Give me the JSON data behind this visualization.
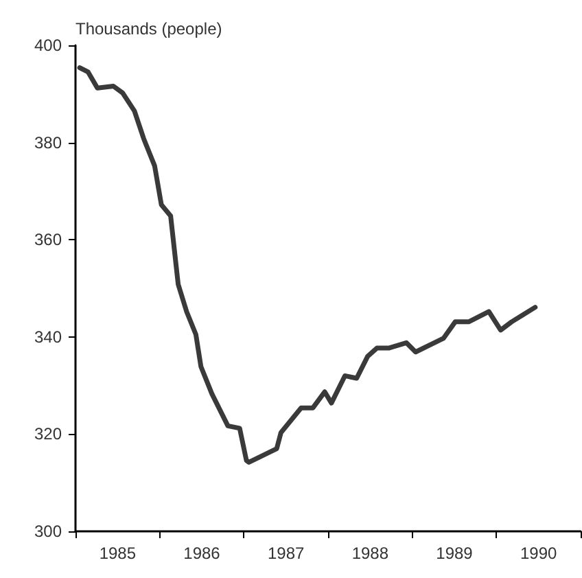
{
  "chart_data": {
    "type": "line",
    "ylabel": "Thousands (people)",
    "x": [
      1985.05,
      1985.15,
      1985.26,
      1985.45,
      1985.56,
      1985.7,
      1985.81,
      1985.94,
      1986.02,
      1986.13,
      1986.22,
      1986.32,
      1986.43,
      1986.49,
      1986.62,
      1986.81,
      1986.95,
      1987.03,
      1987.06,
      1987.39,
      1987.44,
      1987.68,
      1987.82,
      1987.96,
      1988.04,
      1988.2,
      1988.34,
      1988.47,
      1988.58,
      1988.72,
      1988.93,
      1989.04,
      1989.37,
      1989.51,
      1989.67,
      1989.91,
      1990.05,
      1990.18,
      1990.46
    ],
    "series": [
      {
        "color": "#3a3a3a",
        "values": [
          395.4,
          394.5,
          391.2,
          391.6,
          390.2,
          386.5,
          380.8,
          375.2,
          367.2,
          364.9,
          350.8,
          345.2,
          340.5,
          333.9,
          328.3,
          321.7,
          321.2,
          314.6,
          314.2,
          317.0,
          320.3,
          325.4,
          325.4,
          328.7,
          326.4,
          332.0,
          331.5,
          336.0,
          337.7,
          337.7,
          338.8,
          336.9,
          339.7,
          343.1,
          343.1,
          345.2,
          341.4,
          343.1,
          346.1
        ]
      }
    ],
    "xlim": [
      1985,
      1991
    ],
    "xticks": [
      {
        "value": 1985,
        "label": null
      },
      {
        "value": 1985.5,
        "label": "1985"
      },
      {
        "value": 1986,
        "label": null
      },
      {
        "value": 1986.5,
        "label": "1986"
      },
      {
        "value": 1987,
        "label": null
      },
      {
        "value": 1987.5,
        "label": "1987"
      },
      {
        "value": 1988,
        "label": null
      },
      {
        "value": 1988.5,
        "label": "1988"
      },
      {
        "value": 1989,
        "label": null
      },
      {
        "value": 1989.5,
        "label": "1989"
      },
      {
        "value": 1990,
        "label": null
      },
      {
        "value": 1990.5,
        "label": "1990"
      },
      {
        "value": 1991,
        "label": null
      }
    ],
    "ylim": [
      300,
      400
    ],
    "yticks": [
      300,
      320,
      340,
      360,
      380,
      400
    ],
    "grid": false,
    "marker": "none",
    "line_style": "solid"
  }
}
